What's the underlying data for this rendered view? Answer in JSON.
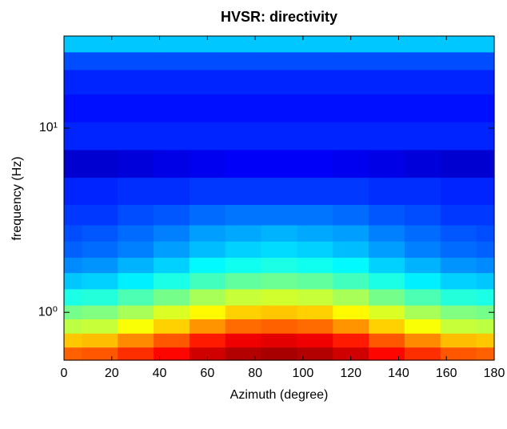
{
  "chart_data": {
    "type": "heatmap",
    "title": "HVSR: directivity",
    "x_label": "Azimuth (degree)",
    "y_label": "frequency (Hz)",
    "x": [
      0,
      15,
      30,
      45,
      60,
      75,
      90,
      105,
      120,
      135,
      150,
      165,
      180
    ],
    "y": [
      0.6,
      0.7,
      0.85,
      1,
      1.2,
      1.5,
      1.8,
      2.2,
      2.7,
      3.3,
      4.5,
      6.5,
      9,
      13,
      18,
      24,
      28
    ],
    "z": [
      [
        7.8,
        7.9,
        8.3,
        8.7,
        9.2,
        9.5,
        9.6,
        9.5,
        9.2,
        8.7,
        8.3,
        7.9,
        7.8
      ],
      [
        6.8,
        6.9,
        7.4,
        7.9,
        8.5,
        8.9,
        9.0,
        8.9,
        8.5,
        7.9,
        7.4,
        6.9,
        6.8
      ],
      [
        5.6,
        5.7,
        6.2,
        6.7,
        7.3,
        7.7,
        7.8,
        7.7,
        7.3,
        6.7,
        6.2,
        5.7,
        5.6
      ],
      [
        4.9,
        5.0,
        5.4,
        5.9,
        6.3,
        6.7,
        6.8,
        6.7,
        6.3,
        5.9,
        5.4,
        5.0,
        4.9
      ],
      [
        4.0,
        4.1,
        4.5,
        4.9,
        5.4,
        5.7,
        5.8,
        5.7,
        5.4,
        4.9,
        4.5,
        4.1,
        4.0
      ],
      [
        3.2,
        3.3,
        3.6,
        4.0,
        4.4,
        4.7,
        4.8,
        4.7,
        4.4,
        4.0,
        3.6,
        3.3,
        3.2
      ],
      [
        2.6,
        2.7,
        3.0,
        3.3,
        3.7,
        3.9,
        4.0,
        3.9,
        3.7,
        3.3,
        3.0,
        2.7,
        2.6
      ],
      [
        2.2,
        2.3,
        2.5,
        2.8,
        3.1,
        3.3,
        3.4,
        3.3,
        3.1,
        2.8,
        2.5,
        2.3,
        2.2
      ],
      [
        2.0,
        2.1,
        2.3,
        2.5,
        2.8,
        2.9,
        3.0,
        2.9,
        2.8,
        2.5,
        2.3,
        2.1,
        2.0
      ],
      [
        1.8,
        1.8,
        2.0,
        2.1,
        2.3,
        2.4,
        2.4,
        2.4,
        2.3,
        2.1,
        2.0,
        1.8,
        1.8
      ],
      [
        1.6,
        1.6,
        1.7,
        1.7,
        1.8,
        1.8,
        1.8,
        1.8,
        1.8,
        1.7,
        1.7,
        1.6,
        1.6
      ],
      [
        0.8,
        0.8,
        0.9,
        1.0,
        1.1,
        1.2,
        1.2,
        1.2,
        1.1,
        1.0,
        0.9,
        0.8,
        0.8
      ],
      [
        1.6,
        1.6,
        1.6,
        1.6,
        1.6,
        1.6,
        1.6,
        1.6,
        1.6,
        1.6,
        1.6,
        1.6,
        1.6
      ],
      [
        1.4,
        1.4,
        1.4,
        1.4,
        1.4,
        1.4,
        1.4,
        1.4,
        1.4,
        1.4,
        1.4,
        1.4,
        1.4
      ],
      [
        1.6,
        1.6,
        1.6,
        1.6,
        1.6,
        1.6,
        1.6,
        1.6,
        1.6,
        1.6,
        1.6,
        1.6,
        1.6
      ],
      [
        2.0,
        2.0,
        2.0,
        2.0,
        2.0,
        2.0,
        2.0,
        2.0,
        2.0,
        2.0,
        2.0,
        2.0,
        2.0
      ],
      [
        3.2,
        3.2,
        3.2,
        3.2,
        3.2,
        3.2,
        3.2,
        3.2,
        3.2,
        3.2,
        3.2,
        3.2,
        3.2
      ]
    ],
    "zlim": [
      0,
      10
    ],
    "colormap": "jet",
    "xlim": [
      0,
      180
    ],
    "xticks": [
      0,
      20,
      40,
      60,
      80,
      100,
      120,
      140,
      160,
      180
    ],
    "ylim": [
      0.55,
      31.6
    ],
    "y_log": true,
    "yticks": [
      {
        "value": 1,
        "label": "10⁰"
      },
      {
        "value": 10,
        "label": "10¹"
      }
    ]
  }
}
